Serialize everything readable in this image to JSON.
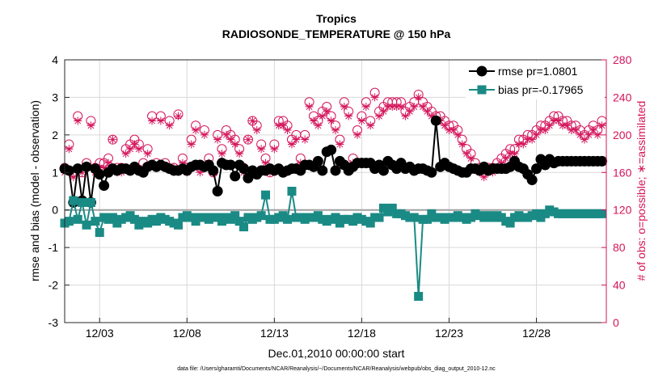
{
  "chart_data": {
    "type": "line",
    "title": "Tropics",
    "subtitle": "RADIOSONDE_TEMPERATURE @ 150 hPa",
    "xlabel": "Dec.01,2010 00:00:00 start",
    "ylabel": "rmse and bias (model - observation)",
    "y2label": "# of obs: o=possible; ∗=assimilated",
    "footnote": "data file: /Users/gharamti/Documents/NCAR/Reanalysis/~/Documents/NCAR/Reanalysis/webpub/obs_diag_output_2010-12.nc",
    "xlim": [
      1.0,
      32.0
    ],
    "xticks": [
      {
        "value": 3,
        "label": "12/03"
      },
      {
        "value": 8,
        "label": "12/08"
      },
      {
        "value": 13,
        "label": "12/13"
      },
      {
        "value": 18,
        "label": "12/18"
      },
      {
        "value": 23,
        "label": "12/23"
      },
      {
        "value": 28,
        "label": "12/28"
      }
    ],
    "ylim": [
      -3,
      4
    ],
    "yticks": [
      -3,
      -2,
      -1,
      0,
      1,
      2,
      3,
      4
    ],
    "y2lim": [
      0,
      280
    ],
    "y2ticks": [
      0,
      40,
      80,
      120,
      160,
      200,
      240,
      280
    ],
    "grid": true,
    "legend_position": "top-right",
    "colors": {
      "rmse": "#000000",
      "bias": "#1a8a85",
      "counts": "#d4145a",
      "zero_line": "#a0a0a0",
      "grid": "#d9d9d9"
    },
    "series": [
      {
        "name": "rmse pr=1.0801",
        "axis": "left",
        "marker": "circle",
        "x": [
          1.0,
          1.25,
          1.5,
          1.75,
          2.0,
          2.25,
          2.5,
          2.75,
          3.0,
          3.25,
          3.5,
          3.75,
          4.0,
          4.25,
          4.5,
          4.75,
          5.0,
          5.25,
          5.5,
          5.75,
          6.0,
          6.25,
          6.5,
          6.75,
          7.0,
          7.25,
          7.5,
          7.75,
          8.0,
          8.25,
          8.5,
          8.75,
          9.0,
          9.25,
          9.5,
          9.75,
          10.0,
          10.25,
          10.5,
          10.75,
          11.0,
          11.25,
          11.5,
          11.75,
          12.0,
          12.25,
          12.5,
          12.75,
          13.0,
          13.25,
          13.5,
          13.75,
          14.0,
          14.25,
          14.5,
          14.75,
          15.0,
          15.25,
          15.5,
          15.75,
          16.0,
          16.25,
          16.5,
          16.75,
          17.0,
          17.25,
          17.5,
          17.75,
          18.0,
          18.25,
          18.5,
          18.75,
          19.0,
          19.25,
          19.5,
          19.75,
          20.0,
          20.25,
          20.5,
          20.75,
          21.0,
          21.25,
          21.5,
          21.75,
          22.0,
          22.25,
          22.5,
          22.75,
          23.0,
          23.25,
          23.5,
          23.75,
          24.0,
          24.25,
          24.5,
          24.75,
          25.0,
          25.25,
          25.5,
          25.75,
          26.0,
          26.25,
          26.5,
          26.75,
          27.0,
          27.25,
          27.5,
          27.75,
          28.0,
          28.25,
          28.5,
          28.75,
          29.0,
          29.25,
          29.5,
          29.75,
          30.0,
          30.25,
          30.5,
          30.75,
          31.0,
          31.25,
          31.5,
          31.75
        ],
        "y": [
          1.1,
          1.05,
          0.2,
          1.1,
          0.25,
          1.15,
          0.2,
          1.1,
          0.95,
          0.65,
          1.0,
          1.1,
          1.05,
          1.1,
          1.1,
          1.05,
          1.15,
          1.05,
          1.0,
          1.15,
          1.2,
          1.15,
          1.2,
          1.15,
          1.1,
          1.05,
          1.05,
          1.1,
          1.05,
          1.15,
          1.2,
          1.2,
          1.15,
          1.2,
          1.05,
          0.5,
          1.25,
          1.2,
          1.2,
          0.9,
          1.2,
          1.1,
          0.85,
          1.05,
          0.95,
          1.05,
          1.05,
          1.1,
          1.05,
          1.1,
          1.0,
          1.05,
          1.1,
          1.1,
          1.05,
          1.2,
          1.2,
          1.15,
          1.3,
          1.05,
          1.55,
          1.6,
          1.05,
          1.3,
          1.2,
          1.05,
          1.15,
          1.25,
          1.25,
          1.25,
          1.25,
          1.1,
          1.2,
          1.05,
          1.3,
          1.2,
          1.1,
          1.25,
          1.1,
          1.15,
          1.05,
          1.1,
          1.1,
          1.05,
          1.0,
          2.38,
          1.15,
          1.25,
          1.15,
          1.1,
          1.05,
          1.0,
          1.0,
          1.1,
          1.1,
          1.05,
          1.15,
          1.05,
          1.1,
          1.1,
          1.1,
          1.1,
          1.15,
          1.3,
          1.15,
          1.1,
          0.95,
          0.8,
          1.1,
          1.35,
          1.2,
          1.35,
          1.25,
          1.3,
          1.3,
          1.3,
          1.3,
          1.3,
          1.3,
          1.3,
          1.3,
          1.3,
          1.3,
          1.3
        ]
      },
      {
        "name": "bias pr=-0.17965",
        "axis": "left",
        "marker": "square",
        "x": [
          1.0,
          1.25,
          1.5,
          1.75,
          2.0,
          2.25,
          2.5,
          2.75,
          3.0,
          3.25,
          3.5,
          3.75,
          4.0,
          4.25,
          4.5,
          4.75,
          5.0,
          5.25,
          5.5,
          5.75,
          6.0,
          6.25,
          6.5,
          6.75,
          7.0,
          7.25,
          7.5,
          7.75,
          8.0,
          8.25,
          8.5,
          8.75,
          9.0,
          9.25,
          9.5,
          9.75,
          10.0,
          10.25,
          10.5,
          10.75,
          11.0,
          11.25,
          11.5,
          11.75,
          12.0,
          12.25,
          12.5,
          12.75,
          13.0,
          13.25,
          13.5,
          13.75,
          14.0,
          14.25,
          14.5,
          14.75,
          15.0,
          15.25,
          15.5,
          15.75,
          16.0,
          16.25,
          16.5,
          16.75,
          17.0,
          17.25,
          17.5,
          17.75,
          18.0,
          18.25,
          18.5,
          18.75,
          19.0,
          19.25,
          19.5,
          19.75,
          20.0,
          20.25,
          20.5,
          20.75,
          21.0,
          21.25,
          21.5,
          21.75,
          22.0,
          22.25,
          22.5,
          22.75,
          23.0,
          23.25,
          23.5,
          23.75,
          24.0,
          24.25,
          24.5,
          24.75,
          25.0,
          25.25,
          25.5,
          25.75,
          26.0,
          26.25,
          26.5,
          26.75,
          27.0,
          27.25,
          27.5,
          27.75,
          28.0,
          28.25,
          28.5,
          28.75,
          29.0,
          29.25,
          29.5,
          29.75,
          30.0,
          30.25,
          30.5,
          30.75,
          31.0,
          31.25,
          31.5,
          31.75
        ],
        "y": [
          -0.35,
          -0.3,
          0.25,
          -0.25,
          0.2,
          -0.4,
          0.2,
          -0.3,
          -0.6,
          -0.2,
          -0.25,
          -0.2,
          -0.35,
          -0.25,
          -0.2,
          -0.15,
          -0.25,
          -0.4,
          -0.3,
          -0.35,
          -0.25,
          -0.3,
          -0.2,
          -0.25,
          -0.3,
          -0.35,
          -0.4,
          -0.2,
          -0.15,
          -0.2,
          -0.3,
          -0.2,
          -0.2,
          -0.25,
          -0.2,
          -0.2,
          -0.3,
          -0.2,
          -0.25,
          -0.15,
          -0.3,
          -0.45,
          -0.2,
          -0.25,
          -0.2,
          -0.15,
          0.4,
          -0.25,
          -0.25,
          -0.2,
          -0.15,
          -0.25,
          0.5,
          -0.2,
          -0.2,
          -0.25,
          -0.2,
          -0.2,
          -0.15,
          -0.25,
          -0.3,
          -0.25,
          -0.2,
          -0.35,
          -0.25,
          -0.25,
          -0.3,
          -0.2,
          -0.25,
          -0.3,
          -0.35,
          -0.2,
          -0.2,
          0.05,
          -0.05,
          0.05,
          -0.1,
          -0.1,
          -0.15,
          -0.2,
          -0.2,
          -2.3,
          -0.25,
          -0.25,
          -0.1,
          -0.2,
          -0.2,
          -0.25,
          -0.2,
          -0.2,
          -0.15,
          -0.2,
          -0.25,
          -0.2,
          -0.1,
          -0.15,
          -0.2,
          -0.15,
          -0.2,
          -0.15,
          -0.2,
          -0.3,
          -0.35,
          -0.2,
          -0.15,
          -0.2,
          -0.2,
          -0.15,
          -0.1,
          -0.2,
          -0.1,
          0.0,
          -0.05,
          -0.1,
          -0.1,
          -0.1,
          -0.1,
          -0.1,
          -0.1,
          -0.1,
          -0.1,
          -0.1,
          -0.1,
          -0.1
        ]
      },
      {
        "name": "possible",
        "axis": "right",
        "marker": "open-circle",
        "x": [
          1.0,
          1.25,
          1.5,
          1.75,
          2.0,
          2.25,
          2.5,
          2.75,
          3.0,
          3.25,
          3.5,
          3.75,
          4.0,
          4.25,
          4.5,
          4.75,
          5.0,
          5.25,
          5.5,
          5.75,
          6.0,
          6.25,
          6.5,
          6.75,
          7.0,
          7.25,
          7.5,
          7.75,
          8.0,
          8.25,
          8.5,
          8.75,
          9.0,
          9.25,
          9.5,
          9.75,
          10.0,
          10.25,
          10.5,
          10.75,
          11.0,
          11.25,
          11.5,
          11.75,
          12.0,
          12.25,
          12.5,
          12.75,
          13.0,
          13.25,
          13.5,
          13.75,
          14.0,
          14.25,
          14.5,
          14.75,
          15.0,
          15.25,
          15.5,
          15.75,
          16.0,
          16.25,
          16.5,
          16.75,
          17.0,
          17.25,
          17.5,
          17.75,
          18.0,
          18.25,
          18.5,
          18.75,
          19.0,
          19.25,
          19.5,
          19.75,
          20.0,
          20.25,
          20.5,
          20.75,
          21.0,
          21.25,
          21.5,
          21.75,
          22.0,
          22.25,
          22.5,
          22.75,
          23.0,
          23.25,
          23.5,
          23.75,
          24.0,
          24.25,
          24.5,
          24.75,
          25.0,
          25.25,
          25.5,
          25.75,
          26.0,
          26.25,
          26.5,
          26.75,
          27.0,
          27.25,
          27.5,
          27.75,
          28.0,
          28.25,
          28.5,
          28.75,
          29.0,
          29.25,
          29.5,
          29.75,
          30.0,
          30.25,
          30.5,
          30.75,
          31.0,
          31.25,
          31.5,
          31.75
        ],
        "y": [
          165,
          190,
          160,
          220,
          160,
          170,
          215,
          165,
          170,
          170,
          175,
          195,
          165,
          165,
          185,
          190,
          195,
          190,
          170,
          185,
          220,
          170,
          220,
          170,
          215,
          165,
          222,
          175,
          165,
          195,
          210,
          165,
          205,
          175,
          160,
          200,
          185,
          205,
          200,
          195,
          185,
          165,
          195,
          215,
          210,
          190,
          175,
          160,
          190,
          215,
          215,
          210,
          195,
          200,
          175,
          200,
          235,
          220,
          215,
          225,
          230,
          220,
          210,
          195,
          235,
          225,
          175,
          205,
          220,
          235,
          215,
          245,
          225,
          230,
          235,
          235,
          235,
          235,
          225,
          230,
          235,
          243,
          235,
          230,
          225,
          220,
          220,
          215,
          210,
          210,
          205,
          195,
          185,
          180,
          170,
          165,
          160,
          165,
          165,
          170,
          175,
          180,
          185,
          185,
          195,
          195,
          200,
          200,
          205,
          210,
          210,
          215,
          220,
          220,
          215,
          215,
          210,
          210,
          205,
          200,
          205,
          210,
          205,
          215
        ]
      },
      {
        "name": "assimilated",
        "axis": "right",
        "marker": "asterisk",
        "x": [
          1.0,
          1.25,
          1.5,
          1.75,
          2.0,
          2.25,
          2.5,
          2.75,
          3.0,
          3.25,
          3.5,
          3.75,
          4.0,
          4.25,
          4.5,
          4.75,
          5.0,
          5.25,
          5.5,
          5.75,
          6.0,
          6.25,
          6.5,
          6.75,
          7.0,
          7.25,
          7.5,
          7.75,
          8.0,
          8.25,
          8.5,
          8.75,
          9.0,
          9.25,
          9.5,
          9.75,
          10.0,
          10.25,
          10.5,
          10.75,
          11.0,
          11.25,
          11.5,
          11.75,
          12.0,
          12.25,
          12.5,
          12.75,
          13.0,
          13.25,
          13.5,
          13.75,
          14.0,
          14.25,
          14.5,
          14.75,
          15.0,
          15.25,
          15.5,
          15.75,
          16.0,
          16.25,
          16.5,
          16.75,
          17.0,
          17.25,
          17.5,
          17.75,
          18.0,
          18.25,
          18.5,
          18.75,
          19.0,
          19.25,
          19.5,
          19.75,
          20.0,
          20.25,
          20.5,
          20.75,
          21.0,
          21.25,
          21.5,
          21.75,
          22.0,
          22.25,
          22.5,
          22.75,
          23.0,
          23.25,
          23.5,
          23.75,
          24.0,
          24.25,
          24.5,
          24.75,
          25.0,
          25.25,
          25.5,
          25.75,
          26.0,
          26.25,
          26.5,
          26.75,
          27.0,
          27.25,
          27.5,
          27.75,
          28.0,
          28.25,
          28.5,
          28.75,
          29.0,
          29.25,
          29.5,
          29.75,
          30.0,
          30.25,
          30.5,
          30.75,
          31.0,
          31.25,
          31.5,
          31.75
        ],
        "y": [
          160,
          185,
          155,
          215,
          160,
          165,
          210,
          160,
          165,
          165,
          170,
          195,
          160,
          160,
          180,
          185,
          190,
          185,
          165,
          180,
          215,
          165,
          215,
          165,
          210,
          165,
          220,
          170,
          160,
          190,
          205,
          160,
          200,
          170,
          160,
          195,
          180,
          200,
          195,
          190,
          180,
          160,
          195,
          215,
          205,
          185,
          170,
          160,
          185,
          210,
          210,
          205,
          190,
          195,
          170,
          195,
          230,
          215,
          210,
          220,
          225,
          215,
          205,
          190,
          230,
          220,
          170,
          200,
          215,
          230,
          210,
          240,
          220,
          225,
          230,
          230,
          230,
          230,
          220,
          225,
          230,
          240,
          230,
          225,
          220,
          215,
          215,
          210,
          205,
          205,
          200,
          190,
          180,
          175,
          165,
          160,
          155,
          160,
          160,
          165,
          170,
          175,
          180,
          180,
          190,
          190,
          195,
          195,
          200,
          205,
          205,
          210,
          215,
          215,
          210,
          210,
          205,
          205,
          200,
          195,
          200,
          205,
          200,
          210
        ]
      }
    ]
  }
}
